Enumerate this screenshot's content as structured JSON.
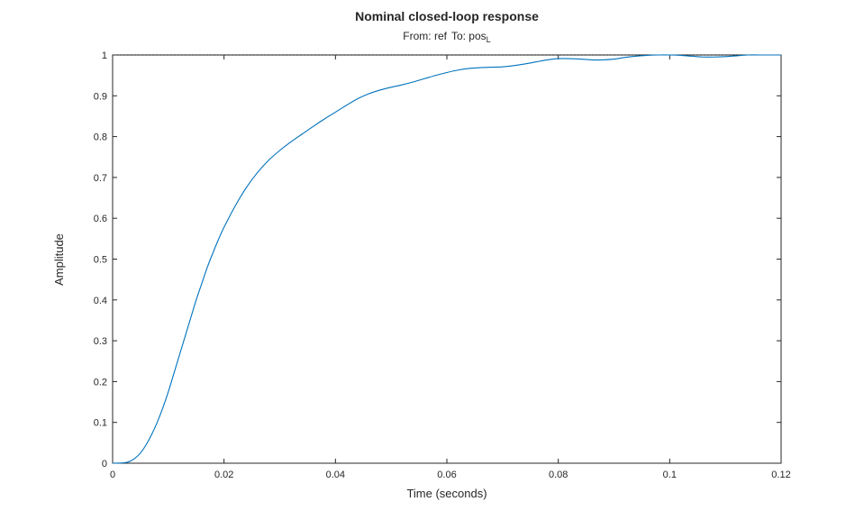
{
  "chart_data": {
    "type": "line",
    "title": "Nominal closed-loop response",
    "subtitle": {
      "from_label": "From: ref",
      "to_label": "To: pos",
      "to_subscript": "L"
    },
    "xlabel": "Time (seconds)",
    "ylabel": "Amplitude",
    "xlim": [
      0,
      0.12
    ],
    "ylim": [
      0,
      1
    ],
    "xticks": [
      0,
      0.02,
      0.04,
      0.06,
      0.08,
      0.1,
      0.12
    ],
    "xtick_labels": [
      "0",
      "0.02",
      "0.04",
      "0.06",
      "0.08",
      "0.1",
      "0.12"
    ],
    "yticks": [
      0,
      0.1,
      0.2,
      0.3,
      0.4,
      0.5,
      0.6,
      0.7,
      0.8,
      0.9,
      1
    ],
    "ytick_labels": [
      "0",
      "0.1",
      "0.2",
      "0.3",
      "0.4",
      "0.5",
      "0.6",
      "0.7",
      "0.8",
      "0.9",
      "1"
    ],
    "grid": false,
    "reference_line": {
      "y": 1,
      "style": "dotted",
      "color": "#000000"
    },
    "series": [
      {
        "color": "#0072BD",
        "x": [
          0,
          0.002,
          0.003,
          0.004,
          0.005,
          0.006,
          0.007,
          0.008,
          0.009,
          0.01,
          0.011,
          0.012,
          0.013,
          0.014,
          0.015,
          0.016,
          0.017,
          0.018,
          0.019,
          0.02,
          0.022,
          0.024,
          0.026,
          0.028,
          0.03,
          0.032,
          0.034,
          0.036,
          0.038,
          0.04,
          0.042,
          0.044,
          0.046,
          0.048,
          0.05,
          0.052,
          0.054,
          0.056,
          0.058,
          0.06,
          0.062,
          0.064,
          0.066,
          0.068,
          0.07,
          0.072,
          0.074,
          0.076,
          0.078,
          0.08,
          0.082,
          0.084,
          0.086,
          0.088,
          0.09,
          0.092,
          0.094,
          0.096,
          0.098,
          0.1,
          0.102,
          0.104,
          0.106,
          0.108,
          0.11,
          0.112,
          0.114,
          0.116,
          0.118,
          0.12
        ],
        "y": [
          0,
          0.001,
          0.004,
          0.012,
          0.025,
          0.045,
          0.07,
          0.1,
          0.135,
          0.175,
          0.22,
          0.265,
          0.31,
          0.355,
          0.4,
          0.44,
          0.48,
          0.515,
          0.548,
          0.578,
          0.63,
          0.675,
          0.712,
          0.742,
          0.766,
          0.787,
          0.806,
          0.825,
          0.843,
          0.86,
          0.877,
          0.893,
          0.905,
          0.914,
          0.921,
          0.927,
          0.934,
          0.942,
          0.95,
          0.957,
          0.963,
          0.967,
          0.969,
          0.97,
          0.971,
          0.974,
          0.978,
          0.983,
          0.988,
          0.991,
          0.991,
          0.99,
          0.988,
          0.988,
          0.99,
          0.994,
          0.997,
          0.999,
          1.0,
          1.0,
          0.999,
          0.997,
          0.995,
          0.995,
          0.996,
          0.998,
          1.0,
          1.0,
          1.0,
          1.0
        ]
      }
    ]
  }
}
